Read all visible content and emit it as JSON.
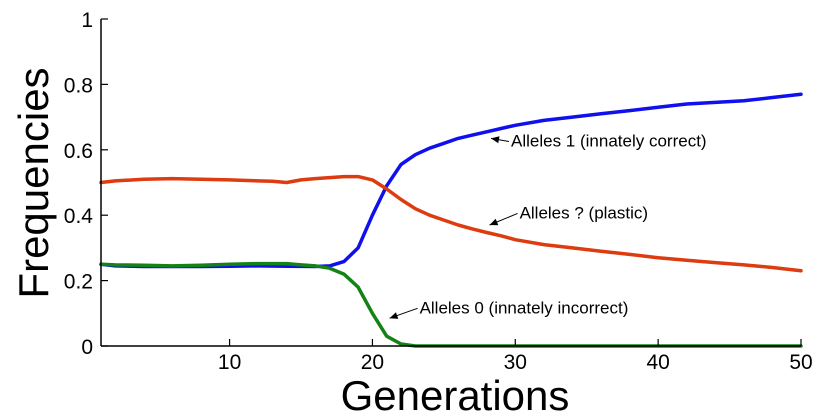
{
  "chart_data": {
    "type": "line",
    "title": "",
    "xlabel": "Generations",
    "ylabel": "Frequencies",
    "xlim": [
      1,
      50
    ],
    "ylim": [
      0,
      1
    ],
    "grid": false,
    "xticks": [
      10,
      20,
      30,
      40,
      50
    ],
    "yticks": [
      0,
      0.2,
      0.4,
      0.6,
      0.8,
      1
    ],
    "xtick_labels": [
      "10",
      "20",
      "30",
      "40",
      "50"
    ],
    "ytick_labels": [
      "0",
      "0.2",
      "0.4",
      "0.6",
      "0.8",
      "1"
    ],
    "series": [
      {
        "color": "#1010ee",
        "points": [
          [
            1,
            0.25
          ],
          [
            2,
            0.245
          ],
          [
            4,
            0.243
          ],
          [
            6,
            0.243
          ],
          [
            8,
            0.243
          ],
          [
            10,
            0.244
          ],
          [
            12,
            0.245
          ],
          [
            14,
            0.244
          ],
          [
            16,
            0.243
          ],
          [
            17,
            0.245
          ],
          [
            18,
            0.258
          ],
          [
            19,
            0.3
          ],
          [
            20,
            0.4
          ],
          [
            21,
            0.49
          ],
          [
            22,
            0.555
          ],
          [
            23,
            0.585
          ],
          [
            24,
            0.605
          ],
          [
            25,
            0.62
          ],
          [
            26,
            0.635
          ],
          [
            27,
            0.645
          ],
          [
            28,
            0.655
          ],
          [
            29,
            0.665
          ],
          [
            30,
            0.675
          ],
          [
            32,
            0.69
          ],
          [
            34,
            0.7
          ],
          [
            36,
            0.71
          ],
          [
            38,
            0.72
          ],
          [
            40,
            0.73
          ],
          [
            42,
            0.74
          ],
          [
            44,
            0.745
          ],
          [
            46,
            0.75
          ],
          [
            48,
            0.76
          ],
          [
            50,
            0.77
          ]
        ]
      },
      {
        "color": "#dd3b10",
        "points": [
          [
            1,
            0.5
          ],
          [
            2,
            0.505
          ],
          [
            4,
            0.51
          ],
          [
            6,
            0.512
          ],
          [
            8,
            0.51
          ],
          [
            10,
            0.508
          ],
          [
            12,
            0.505
          ],
          [
            13,
            0.504
          ],
          [
            14,
            0.5
          ],
          [
            15,
            0.508
          ],
          [
            16,
            0.512
          ],
          [
            17,
            0.515
          ],
          [
            18,
            0.518
          ],
          [
            19,
            0.518
          ],
          [
            20,
            0.508
          ],
          [
            21,
            0.48
          ],
          [
            22,
            0.448
          ],
          [
            23,
            0.42
          ],
          [
            24,
            0.4
          ],
          [
            25,
            0.385
          ],
          [
            26,
            0.37
          ],
          [
            27,
            0.358
          ],
          [
            28,
            0.347
          ],
          [
            29,
            0.337
          ],
          [
            30,
            0.325
          ],
          [
            32,
            0.31
          ],
          [
            34,
            0.3
          ],
          [
            36,
            0.29
          ],
          [
            38,
            0.28
          ],
          [
            40,
            0.27
          ],
          [
            42,
            0.262
          ],
          [
            44,
            0.255
          ],
          [
            46,
            0.248
          ],
          [
            48,
            0.24
          ],
          [
            50,
            0.23
          ]
        ]
      },
      {
        "color": "#158215",
        "points": [
          [
            1,
            0.25
          ],
          [
            2,
            0.248
          ],
          [
            4,
            0.247
          ],
          [
            6,
            0.245
          ],
          [
            8,
            0.247
          ],
          [
            10,
            0.25
          ],
          [
            12,
            0.252
          ],
          [
            14,
            0.252
          ],
          [
            15,
            0.248
          ],
          [
            16,
            0.245
          ],
          [
            17,
            0.238
          ],
          [
            18,
            0.22
          ],
          [
            19,
            0.18
          ],
          [
            20,
            0.1
          ],
          [
            21,
            0.03
          ],
          [
            22,
            0.006
          ],
          [
            23,
            0.0
          ],
          [
            30,
            0.0
          ],
          [
            40,
            0.0
          ],
          [
            50,
            0.0
          ]
        ]
      }
    ],
    "annotations": [
      {
        "text": "Alleles 1 (innately correct)",
        "x": 29.7,
        "y": 0.61,
        "arrow_to": [
          28.3,
          0.635
        ]
      },
      {
        "text": "Alleles ? (plastic)",
        "x": 30.3,
        "y": 0.39,
        "arrow_to": [
          28.2,
          0.37
        ]
      },
      {
        "text": "Alleles 0 (innately incorrect)",
        "x": 23.3,
        "y": 0.1,
        "arrow_to": [
          21.2,
          0.085
        ]
      }
    ]
  }
}
